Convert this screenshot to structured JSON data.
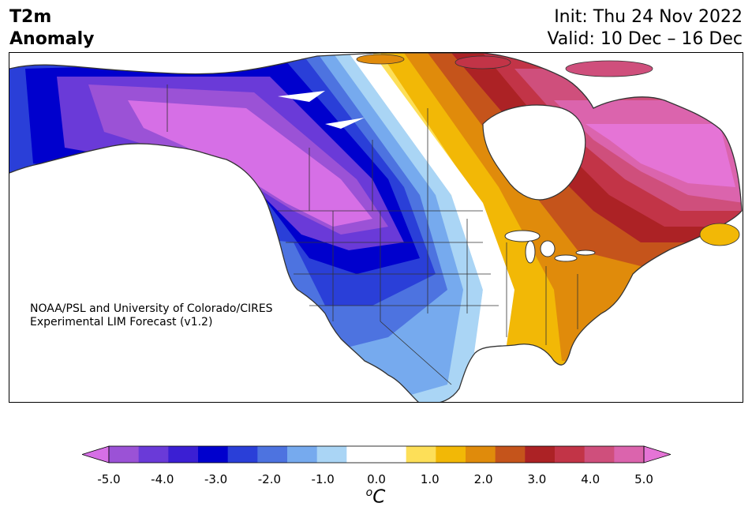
{
  "title": {
    "left_line1": "T2m",
    "left_line2": "Anomaly",
    "right_line1": "Init: Thu 24 Nov 2022",
    "right_line2": "Valid: 10 Dec – 16 Dec"
  },
  "credit": {
    "line1": "NOAA/PSL and University of Colorado/CIRES",
    "line2": "Experimental LIM Forecast (v1.2)"
  },
  "colorbar": {
    "unit_base": "C",
    "unit_sup": "o",
    "ticks": [
      "-5.0",
      "-4.0",
      "-3.0",
      "-2.0",
      "-1.0",
      "0.0",
      "1.0",
      "2.0",
      "3.0",
      "4.0",
      "5.0"
    ],
    "colors": [
      "#d66fe6",
      "#9b52d6",
      "#6a3ad8",
      "#3b1fd3",
      "#0000cd",
      "#2a3fd8",
      "#4d73e0",
      "#76aaee",
      "#aad5f5",
      "#ffffff",
      "#ffffff",
      "#fddf58",
      "#f2b806",
      "#e08b0b",
      "#c5541b",
      "#ac2225",
      "#c23447",
      "#cf4f7c",
      "#db64ad",
      "#e574d6"
    ]
  },
  "map_colors": {
    "land_outline": "#333333",
    "ocean": "#ffffff"
  }
}
